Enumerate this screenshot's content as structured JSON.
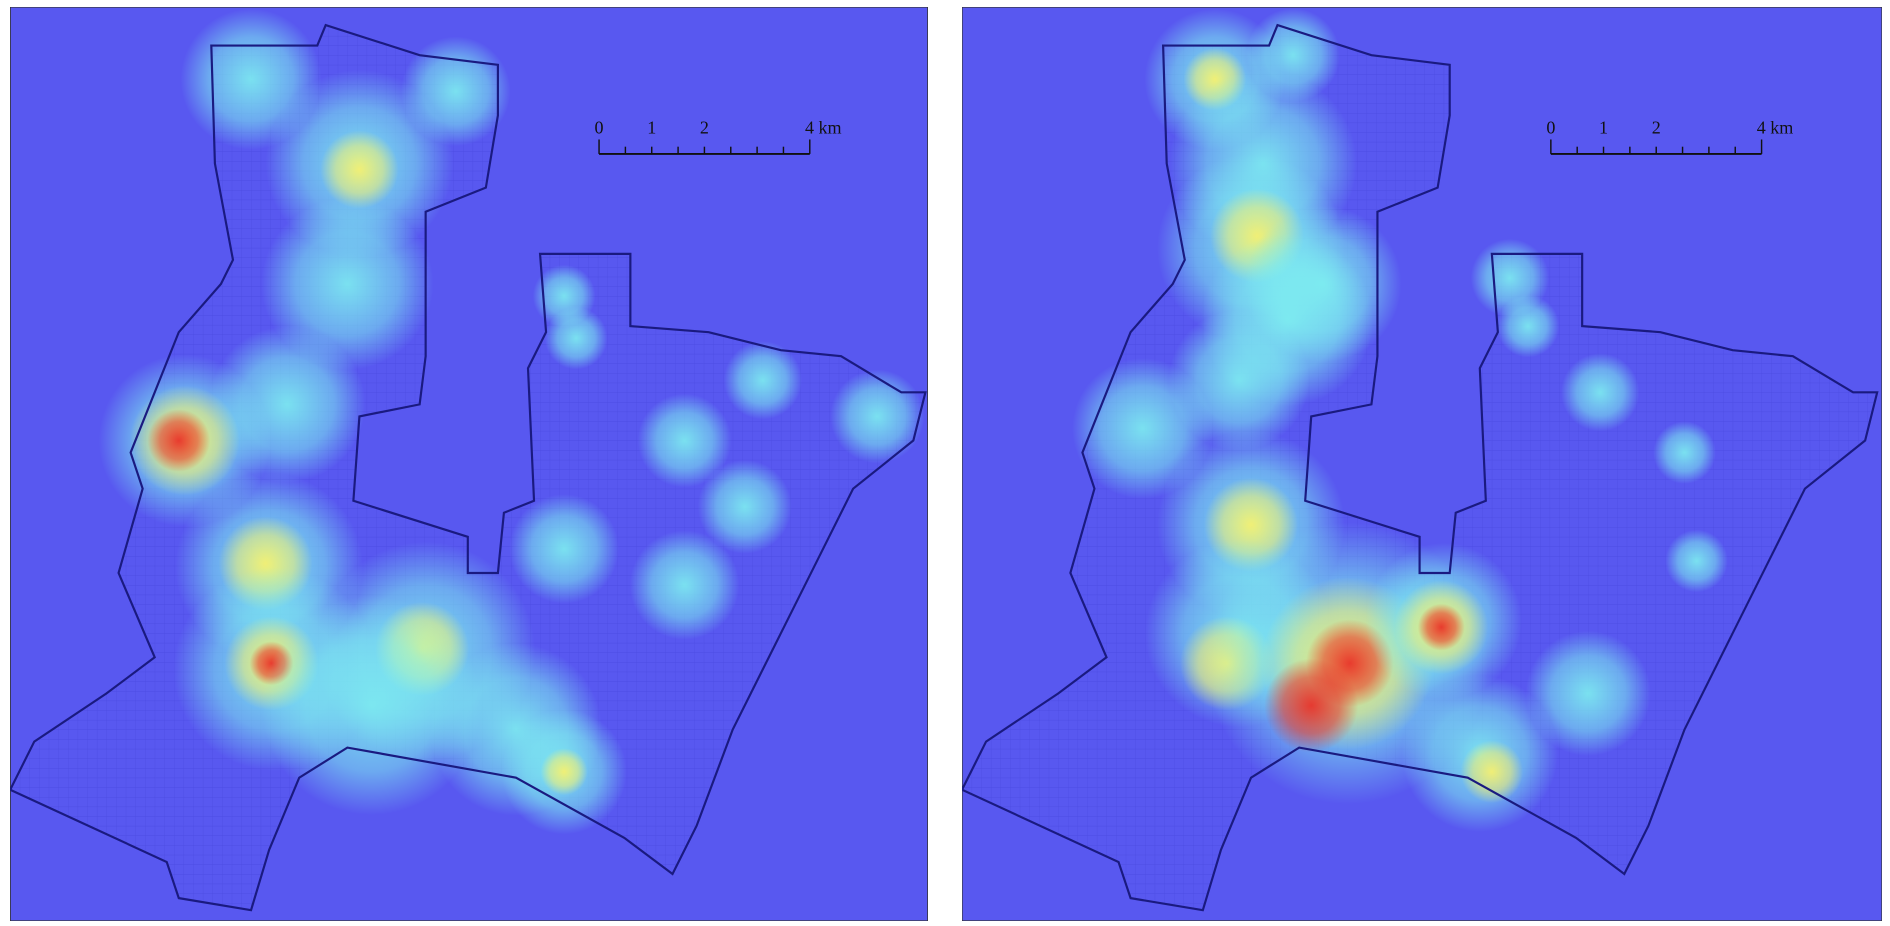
{
  "maps": [
    {
      "scale_bar": {
        "labels": [
          "0",
          "1",
          "2",
          "4 km"
        ]
      }
    },
    {
      "scale_bar": {
        "labels": [
          "0",
          "1",
          "2",
          "4 km"
        ]
      }
    }
  ]
}
